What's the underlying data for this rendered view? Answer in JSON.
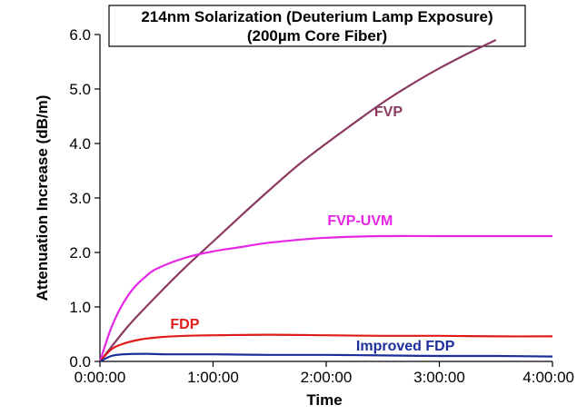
{
  "chart_data": {
    "type": "line",
    "title": "214nm Solarization (Deuterium Lamp Exposure)",
    "subtitle": "(200µm Core Fiber)",
    "xlabel": "Time",
    "ylabel": "Attenuation Increase (dB/m)",
    "x_unit": "hours",
    "xlim": [
      0,
      4
    ],
    "ylim": [
      0,
      6
    ],
    "x_ticks": [
      0,
      1,
      2,
      3,
      4
    ],
    "x_tick_labels": [
      "0:00:00",
      "1:00:00",
      "2:00:00",
      "3:00:00",
      "4:00:00"
    ],
    "y_ticks": [
      0,
      1,
      2,
      3,
      4,
      5,
      6
    ],
    "y_tick_labels": [
      "0.0",
      "1.0",
      "2.0",
      "3.0",
      "4.0",
      "5.0",
      "6.0"
    ],
    "grid": false,
    "legend": "none (series labeled directly on chart)",
    "series": [
      {
        "name": "FVP",
        "color": "#8B3A62",
        "label_at": [
          2.55,
          4.5
        ],
        "x": [
          0,
          0.25,
          0.5,
          0.75,
          1.0,
          1.25,
          1.5,
          1.75,
          2.0,
          2.25,
          2.5,
          2.75,
          3.0,
          3.25,
          3.5
        ],
        "y": [
          0,
          0.65,
          1.2,
          1.72,
          2.2,
          2.68,
          3.15,
          3.6,
          4.0,
          4.38,
          4.75,
          5.08,
          5.38,
          5.65,
          5.9
        ]
      },
      {
        "name": "FVP-UVM",
        "color": "#E526E5",
        "label_at": [
          2.3,
          2.5
        ],
        "x": [
          0,
          0.1,
          0.2,
          0.3,
          0.4,
          0.5,
          0.75,
          1.0,
          1.25,
          1.5,
          2.0,
          2.5,
          3.0,
          3.5,
          4.0
        ],
        "y": [
          0,
          0.62,
          1.05,
          1.35,
          1.55,
          1.7,
          1.9,
          2.02,
          2.1,
          2.18,
          2.27,
          2.3,
          2.3,
          2.3,
          2.3
        ]
      },
      {
        "name": "FDP",
        "color": "#E01B1B",
        "label_at": [
          0.75,
          0.6
        ],
        "x": [
          0,
          0.1,
          0.2,
          0.35,
          0.5,
          0.75,
          1.0,
          1.5,
          2.0,
          2.5,
          3.0,
          3.5,
          4.0
        ],
        "y": [
          0,
          0.22,
          0.32,
          0.4,
          0.44,
          0.47,
          0.48,
          0.49,
          0.48,
          0.47,
          0.47,
          0.46,
          0.46
        ]
      },
      {
        "name": "Improved FDP",
        "color": "#1C2E9A",
        "label_at": [
          2.7,
          0.2
        ],
        "x": [
          0,
          0.1,
          0.2,
          0.4,
          0.6,
          1.0,
          1.5,
          2.0,
          2.5,
          3.0,
          3.5,
          4.0
        ],
        "y": [
          0,
          0.1,
          0.13,
          0.14,
          0.13,
          0.13,
          0.12,
          0.12,
          0.11,
          0.1,
          0.1,
          0.09
        ]
      }
    ]
  }
}
